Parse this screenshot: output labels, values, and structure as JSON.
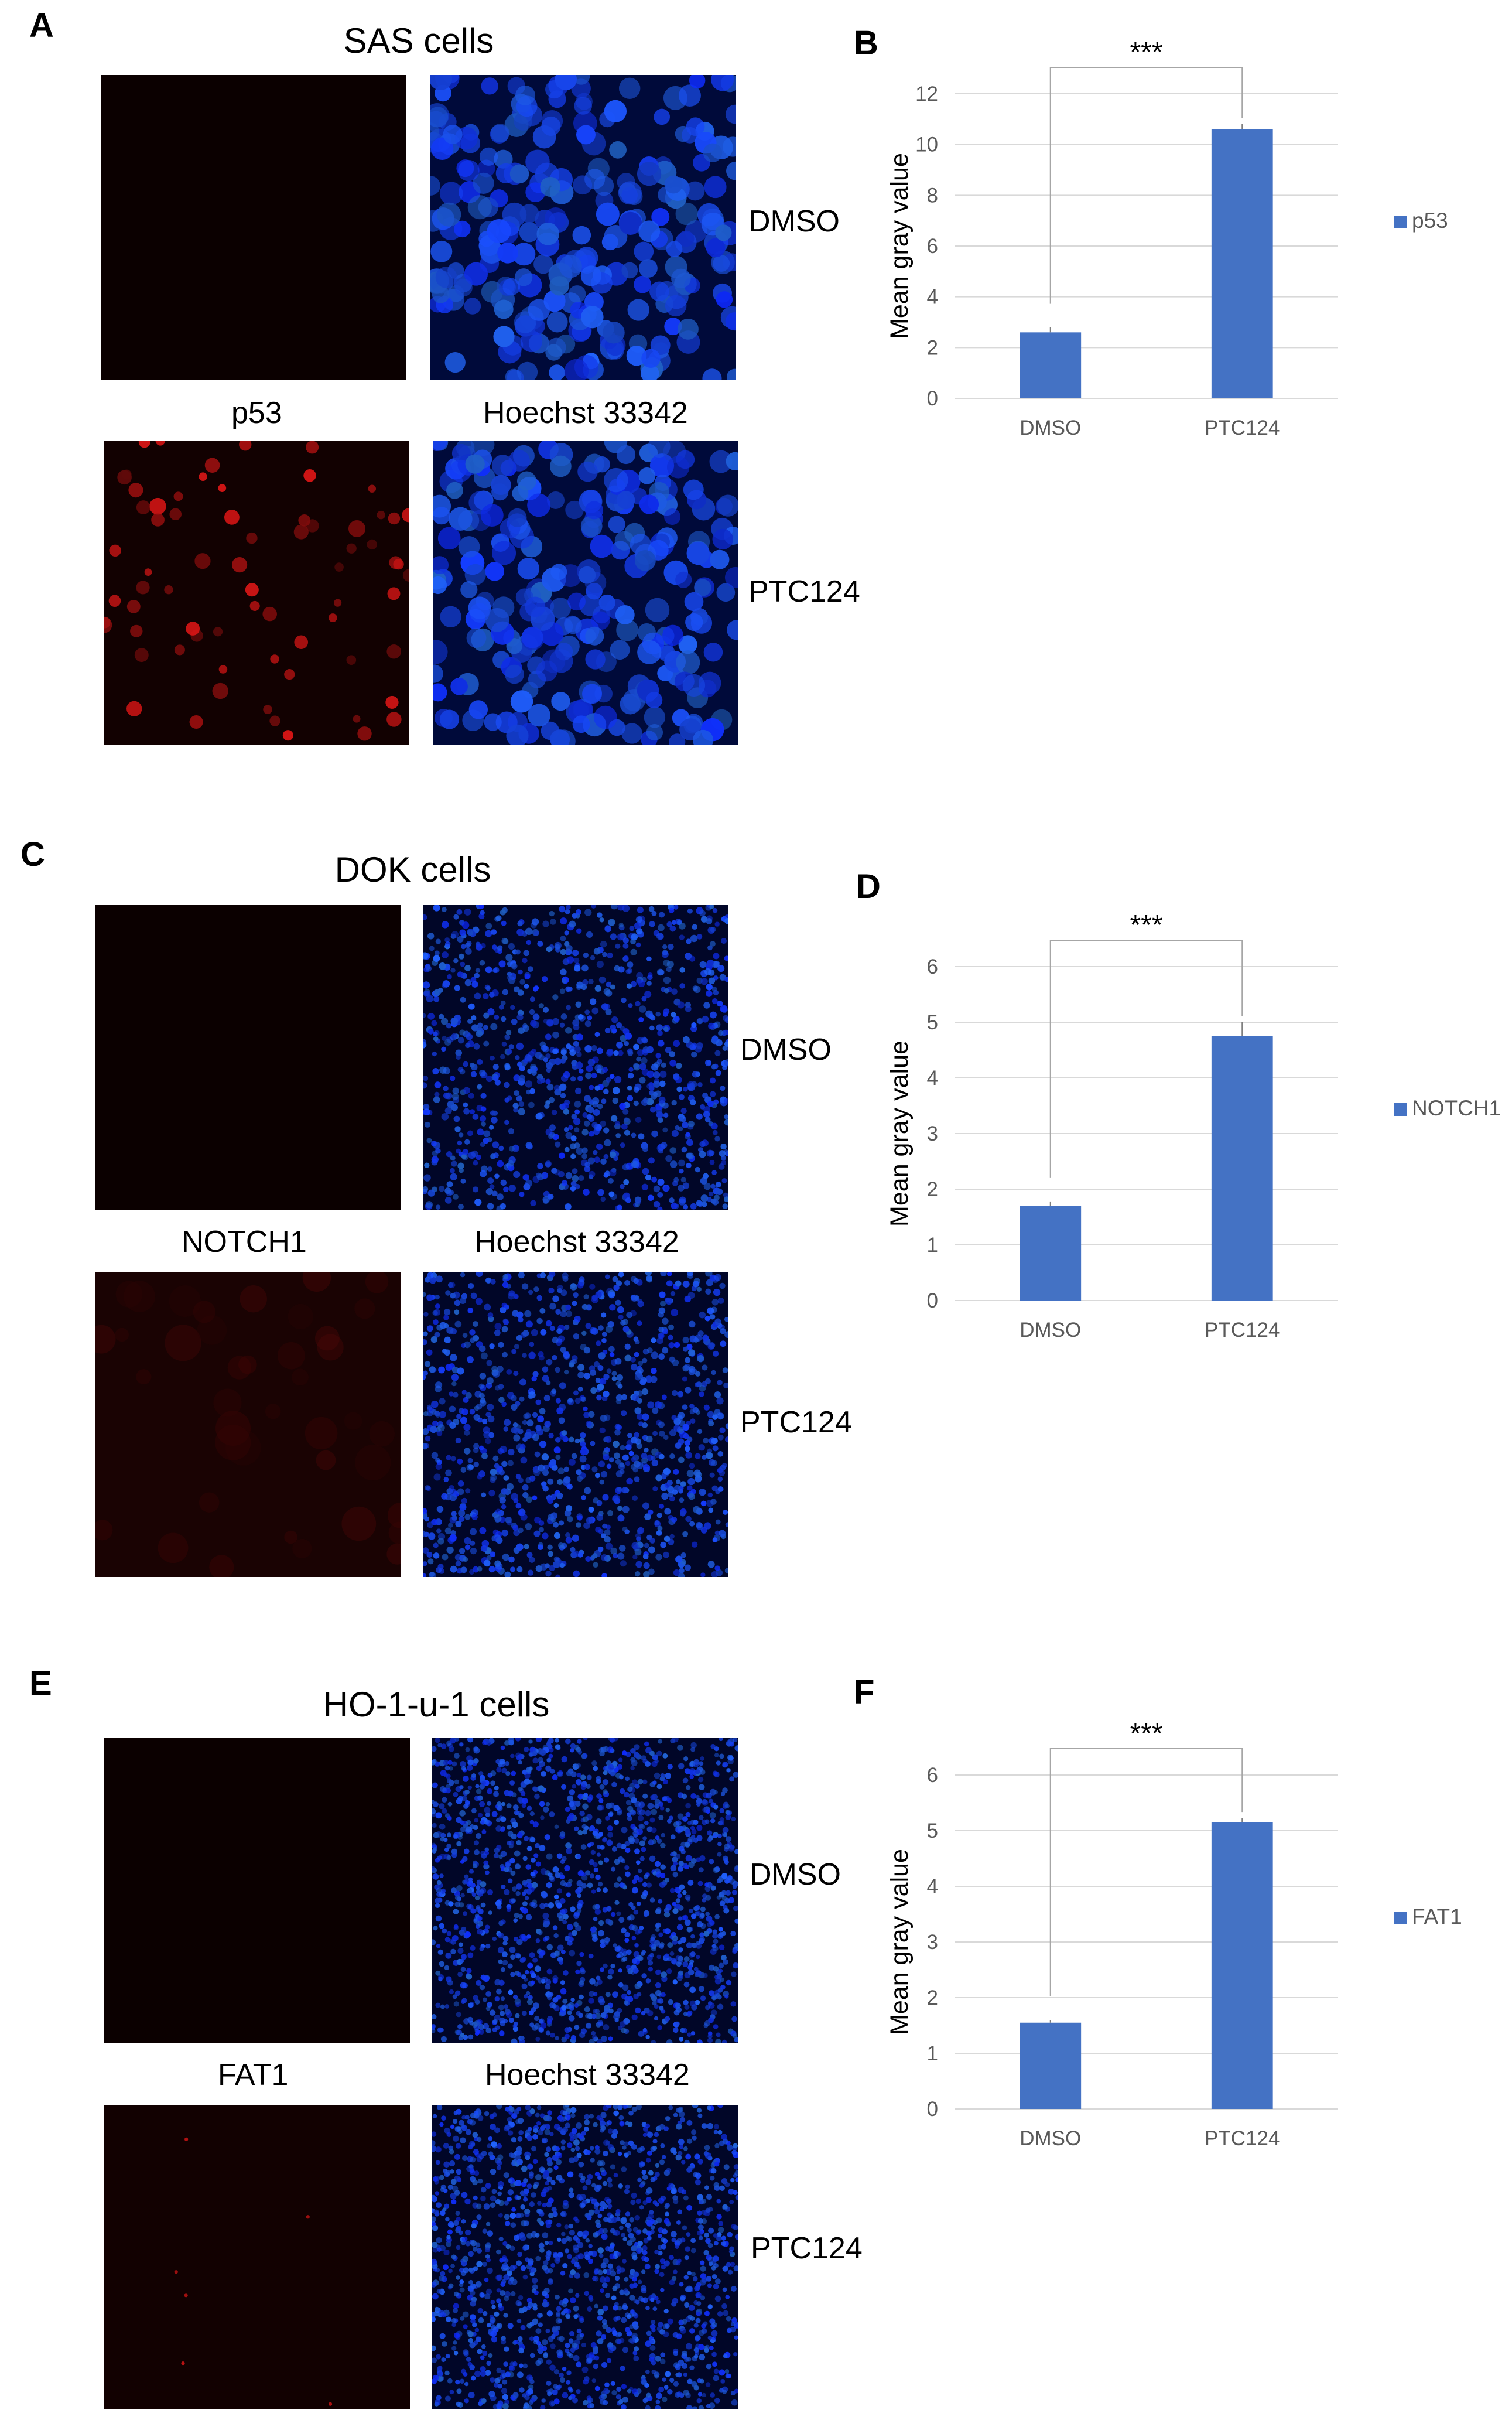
{
  "panels": [
    {
      "id": "A",
      "chart_id": "B",
      "title": "SAS cells",
      "stain_label": "p53",
      "nuclear_label": "Hoechst 33342",
      "row_labels": [
        "DMSO",
        "PTC124"
      ]
    },
    {
      "id": "C",
      "chart_id": "D",
      "title": "DOK cells",
      "stain_label": "NOTCH1",
      "nuclear_label": "Hoechst 33342",
      "row_labels": [
        "DMSO",
        "PTC124"
      ]
    },
    {
      "id": "E",
      "chart_id": "F",
      "title": "HO-1-u-1 cells",
      "stain_label": "FAT1",
      "nuclear_label": "Hoechst 33342",
      "row_labels": [
        "DMSO",
        "PTC124"
      ]
    }
  ],
  "colors": {
    "bar": "#4472c4",
    "grid": "#d9d9d9",
    "axis_text": "#595959",
    "nuclei": "#1f3cff",
    "stain": "#c01414"
  },
  "chart_data": [
    {
      "type": "bar",
      "categories": [
        "DMSO",
        "PTC124"
      ],
      "series": [
        {
          "name": "p53",
          "values": [
            2.6,
            10.6
          ],
          "errors": [
            0.2,
            0.2
          ]
        }
      ],
      "ylabel": "Mean gray value",
      "ylim": [
        0,
        12
      ],
      "yticks": [
        0,
        2,
        4,
        6,
        8,
        10,
        12
      ],
      "significance": "***",
      "legend": "right",
      "grid": true
    },
    {
      "type": "bar",
      "categories": [
        "DMSO",
        "PTC124"
      ],
      "series": [
        {
          "name": "NOTCH1",
          "values": [
            1.7,
            4.75
          ],
          "errors": [
            0.08,
            0.25
          ]
        }
      ],
      "ylabel": "Mean gray value",
      "ylim": [
        0,
        6
      ],
      "yticks": [
        0,
        1,
        2,
        3,
        4,
        5,
        6
      ],
      "significance": "***",
      "legend": "right",
      "grid": true
    },
    {
      "type": "bar",
      "categories": [
        "DMSO",
        "PTC124"
      ],
      "series": [
        {
          "name": "FAT1",
          "values": [
            1.55,
            5.15
          ],
          "errors": [
            0.05,
            0.08
          ]
        }
      ],
      "ylabel": "Mean gray value",
      "ylim": [
        0,
        6
      ],
      "yticks": [
        0,
        1,
        2,
        3,
        4,
        5,
        6
      ],
      "significance": "***",
      "legend": "right",
      "grid": true
    }
  ]
}
